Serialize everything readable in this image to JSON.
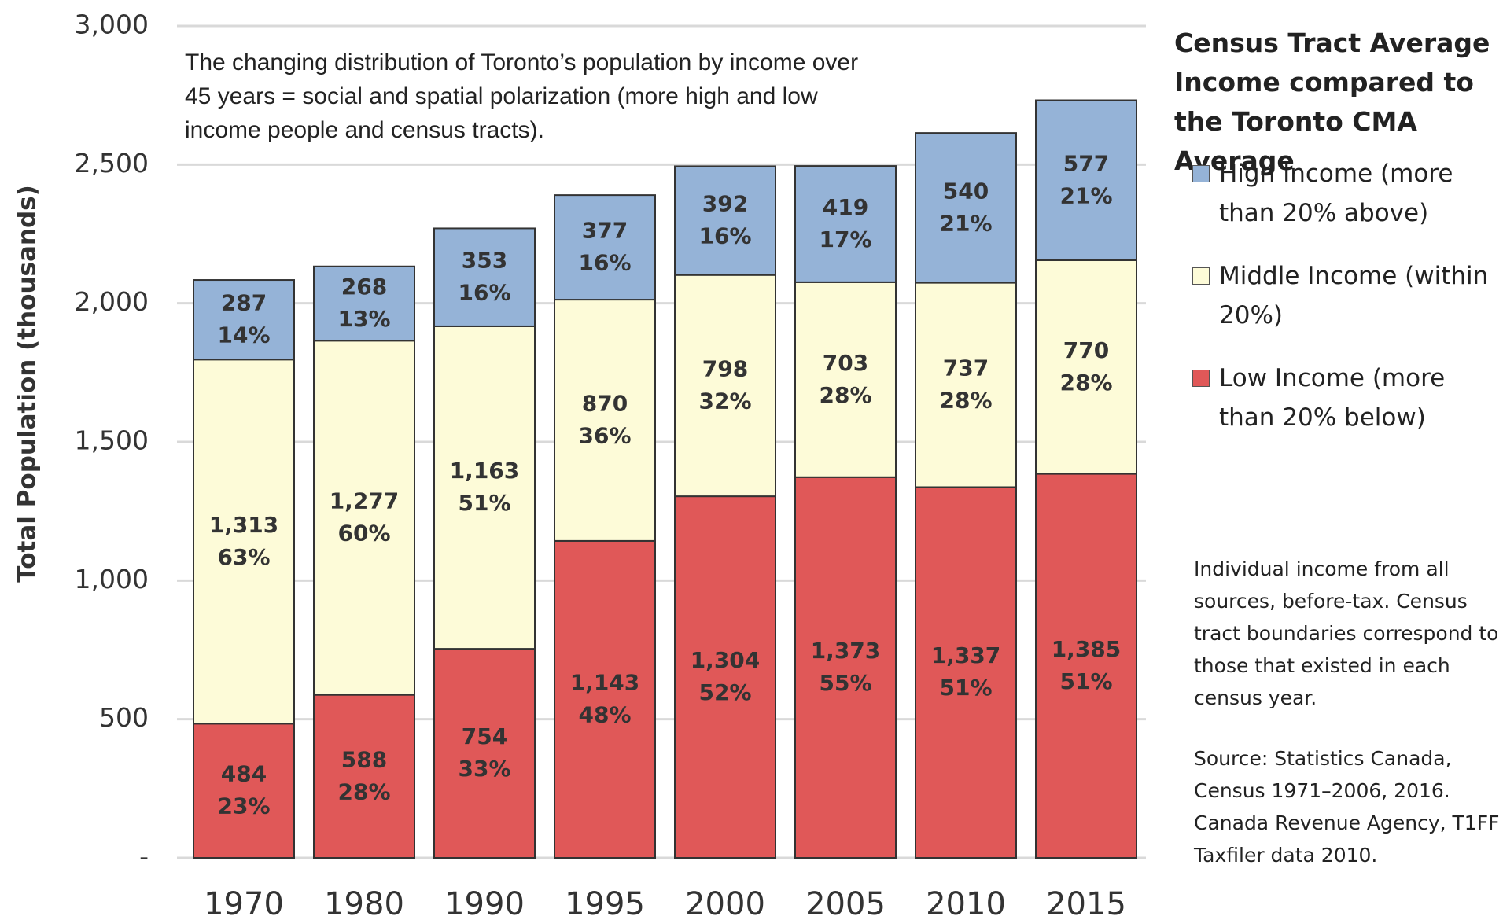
{
  "chart_data": {
    "type": "stacked_bar",
    "annotation": "The changing distribution of Toronto’s population by income over 45 years = social and spatial polarization (more high and low income people and census tracts).",
    "y_axis_label": "Total Population (thousands)",
    "legend_title": "Census Tract Average Income compared to the Toronto CMA Average",
    "notes": [
      "Individual income from all sources, before-tax. Census tract boundaries correspond to those that existed in each census year.",
      "Source: Statistics Canada, Census 1971–2006, 2016. Canada Revenue Agency, T1FF Taxfiler data 2010."
    ],
    "categories": [
      "1970",
      "1980",
      "1990",
      "1995",
      "2000",
      "2005",
      "2010",
      "2015"
    ],
    "series": [
      {
        "name": "Low Income (more than 20% below)",
        "color": "#e05858",
        "values": [
          484,
          588,
          754,
          1143,
          1304,
          1373,
          1337,
          1385
        ],
        "value_labels": [
          "484",
          "588",
          "754",
          "1,143",
          "1,304",
          "1,373",
          "1,337",
          "1,385"
        ],
        "percent_labels": [
          "23%",
          "28%",
          "33%",
          "48%",
          "52%",
          "55%",
          "51%",
          "51%"
        ]
      },
      {
        "name": "Middle Income (within 20%)",
        "color": "#fdfbd8",
        "values": [
          1313,
          1277,
          1163,
          870,
          798,
          703,
          737,
          770
        ],
        "value_labels": [
          "1,313",
          "1,277",
          "1,163",
          "870",
          "798",
          "703",
          "737",
          "770"
        ],
        "percent_labels": [
          "63%",
          "60%",
          "51%",
          "36%",
          "32%",
          "28%",
          "28%",
          "28%"
        ]
      },
      {
        "name": "High Income (more than 20% above)",
        "color": "#95b3d7",
        "values": [
          287,
          268,
          353,
          377,
          392,
          419,
          540,
          577
        ],
        "value_labels": [
          "287",
          "268",
          "353",
          "377",
          "392",
          "419",
          "540",
          "577"
        ],
        "percent_labels": [
          "14%",
          "13%",
          "16%",
          "16%",
          "16%",
          "17%",
          "21%",
          "21%"
        ]
      }
    ],
    "ylim": [
      0,
      3000
    ],
    "yticks": [
      {
        "value": 0,
        "label": "-"
      },
      500,
      {
        "value": 1000,
        "label": "1,000"
      },
      {
        "value": 1500,
        "label": "1,500"
      },
      {
        "value": 2000,
        "label": "2,000"
      },
      {
        "value": 2500,
        "label": "2,500"
      },
      {
        "value": 3000,
        "label": "3,000"
      }
    ],
    "grid": true
  }
}
